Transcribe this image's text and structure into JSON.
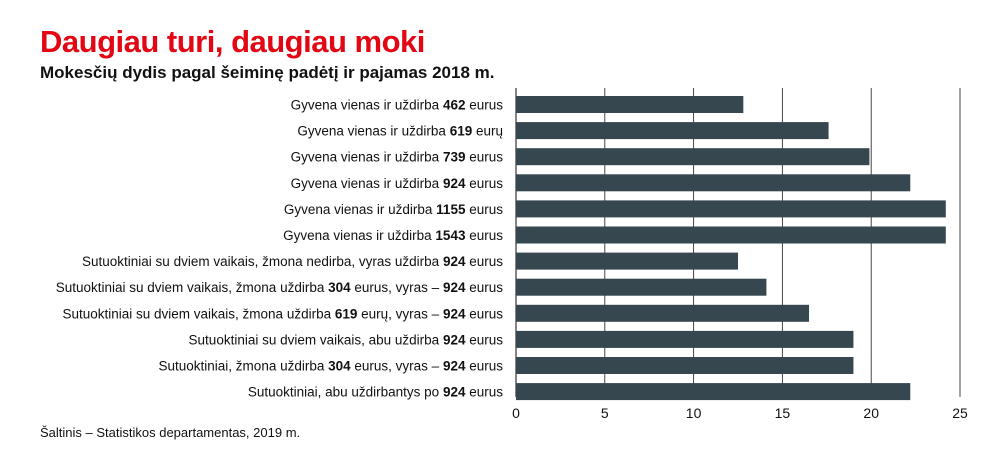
{
  "header": {
    "title": "Daugiau turi, daugiau moki",
    "subtitle": "Mokesčių dydis pagal šeiminę padėtį ir pajamas 2018 m."
  },
  "footer": {
    "source": "Šaltinis – Statistikos departamentas, 2019 m."
  },
  "colors": {
    "bar": "#36474f",
    "title": "#e30613",
    "gridline": "#333333"
  },
  "chart_data": {
    "type": "bar",
    "orientation": "horizontal",
    "categories": [
      "Gyvena vienas ir uždirba 462 eurus",
      "Gyvena vienas ir uždirba 619 eurų",
      "Gyvena vienas ir uždirba 739 eurus",
      "Gyvena vienas ir uždirba 924 eurus",
      "Gyvena vienas ir uždirba 1155 eurus",
      "Gyvena vienas ir uždirba 1543 eurus",
      "Sutuoktiniai su dviem vaikais, žmona nedirba, vyras uždirba 924 eurus",
      "Sutuoktiniai su dviem vaikais, žmona uždirba 304 eurus, vyras – 924 eurus",
      "Sutuoktiniai su dviem vaikais, žmona uždirba 619 eurų, vyras – 924 eurus",
      "Sutuoktiniai su dviem vaikais, abu uždirba 924 eurus",
      "Sutuoktiniai, žmona uždirba 304 eurus, vyras – 924 eurus",
      "Sutuoktiniai, abu uždirbantys po 924 eurus"
    ],
    "category_parts": [
      [
        {
          "t": "Gyvena vienas ir uždirba "
        },
        {
          "t": "462",
          "b": true
        },
        {
          "t": " eurus"
        }
      ],
      [
        {
          "t": "Gyvena vienas ir uždirba "
        },
        {
          "t": "619",
          "b": true
        },
        {
          "t": " eurų"
        }
      ],
      [
        {
          "t": "Gyvena vienas ir uždirba "
        },
        {
          "t": "739",
          "b": true
        },
        {
          "t": " eurus"
        }
      ],
      [
        {
          "t": "Gyvena vienas ir uždirba "
        },
        {
          "t": "924",
          "b": true
        },
        {
          "t": " eurus"
        }
      ],
      [
        {
          "t": "Gyvena vienas ir uždirba "
        },
        {
          "t": "1155",
          "b": true
        },
        {
          "t": " eurus"
        }
      ],
      [
        {
          "t": "Gyvena vienas ir uždirba "
        },
        {
          "t": "1543",
          "b": true
        },
        {
          "t": " eurus"
        }
      ],
      [
        {
          "t": "Sutuoktiniai su dviem vaikais, žmona nedirba, vyras uždirba "
        },
        {
          "t": "924",
          "b": true
        },
        {
          "t": " eurus"
        }
      ],
      [
        {
          "t": "Sutuoktiniai su dviem vaikais, žmona uždirba "
        },
        {
          "t": "304",
          "b": true
        },
        {
          "t": " eurus, vyras – "
        },
        {
          "t": "924",
          "b": true
        },
        {
          "t": " eurus"
        }
      ],
      [
        {
          "t": "Sutuoktiniai su dviem vaikais, žmona uždirba "
        },
        {
          "t": "619",
          "b": true
        },
        {
          "t": " eurų, vyras – "
        },
        {
          "t": "924",
          "b": true
        },
        {
          "t": " eurus"
        }
      ],
      [
        {
          "t": "Sutuoktiniai su dviem vaikais, abu uždirba "
        },
        {
          "t": "924",
          "b": true
        },
        {
          "t": " eurus"
        }
      ],
      [
        {
          "t": "Sutuoktiniai, žmona uždirba "
        },
        {
          "t": "304",
          "b": true
        },
        {
          "t": " eurus, vyras – "
        },
        {
          "t": "924",
          "b": true
        },
        {
          "t": " eurus"
        }
      ],
      [
        {
          "t": "Sutuoktiniai, abu uždirbantys po "
        },
        {
          "t": "924",
          "b": true
        },
        {
          "t": " eurus"
        }
      ]
    ],
    "values": [
      12.8,
      17.6,
      19.9,
      22.2,
      24.2,
      24.2,
      12.5,
      14.1,
      16.5,
      19.0,
      19.0,
      22.2
    ],
    "xlim": [
      0,
      25
    ],
    "xticks": [
      0,
      5,
      10,
      15,
      20,
      25
    ],
    "xlabel": "",
    "ylabel": "",
    "grid": "vertical",
    "legend": "none"
  }
}
